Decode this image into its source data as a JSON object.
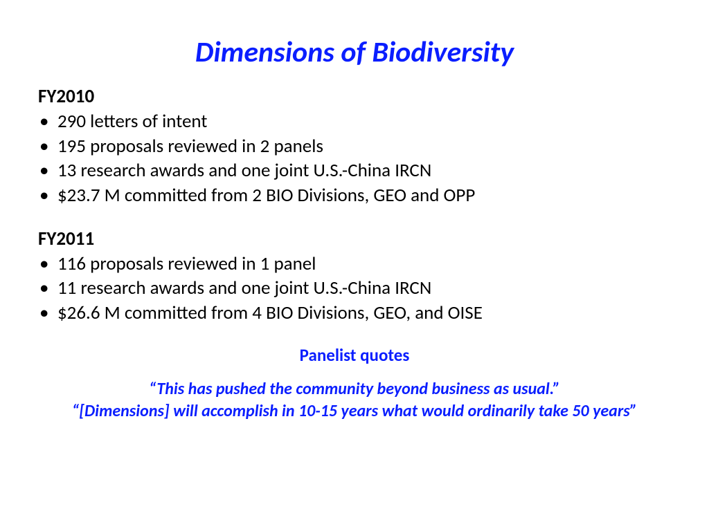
{
  "title": "Dimensions of Biodiversity",
  "sections": [
    {
      "heading": "FY2010",
      "bullets": [
        "290 letters of intent",
        "195 proposals reviewed in 2 panels",
        "13 research awards and one joint U.S.-China IRCN",
        "$23.7 M committed from 2 BIO Divisions, GEO and OPP"
      ]
    },
    {
      "heading": "FY2011",
      "bullets": [
        "116 proposals reviewed in 1 panel",
        "11 research awards and one joint U.S.-China IRCN",
        "$26.6 M committed from 4 BIO Divisions, GEO, and OISE"
      ]
    }
  ],
  "quotesHeading": "Panelist quotes",
  "quotes": [
    "“This has pushed the community beyond business as usual.”",
    "“[Dimensions] will accomplish in 10-15 years what would ordinarily take 50 years”"
  ],
  "colors": {
    "accent": "#0a1eff",
    "text": "#000000",
    "background": "#ffffff"
  },
  "typography": {
    "title_fontsize": 42,
    "body_fontsize": 27,
    "quote_fontsize": 24
  }
}
